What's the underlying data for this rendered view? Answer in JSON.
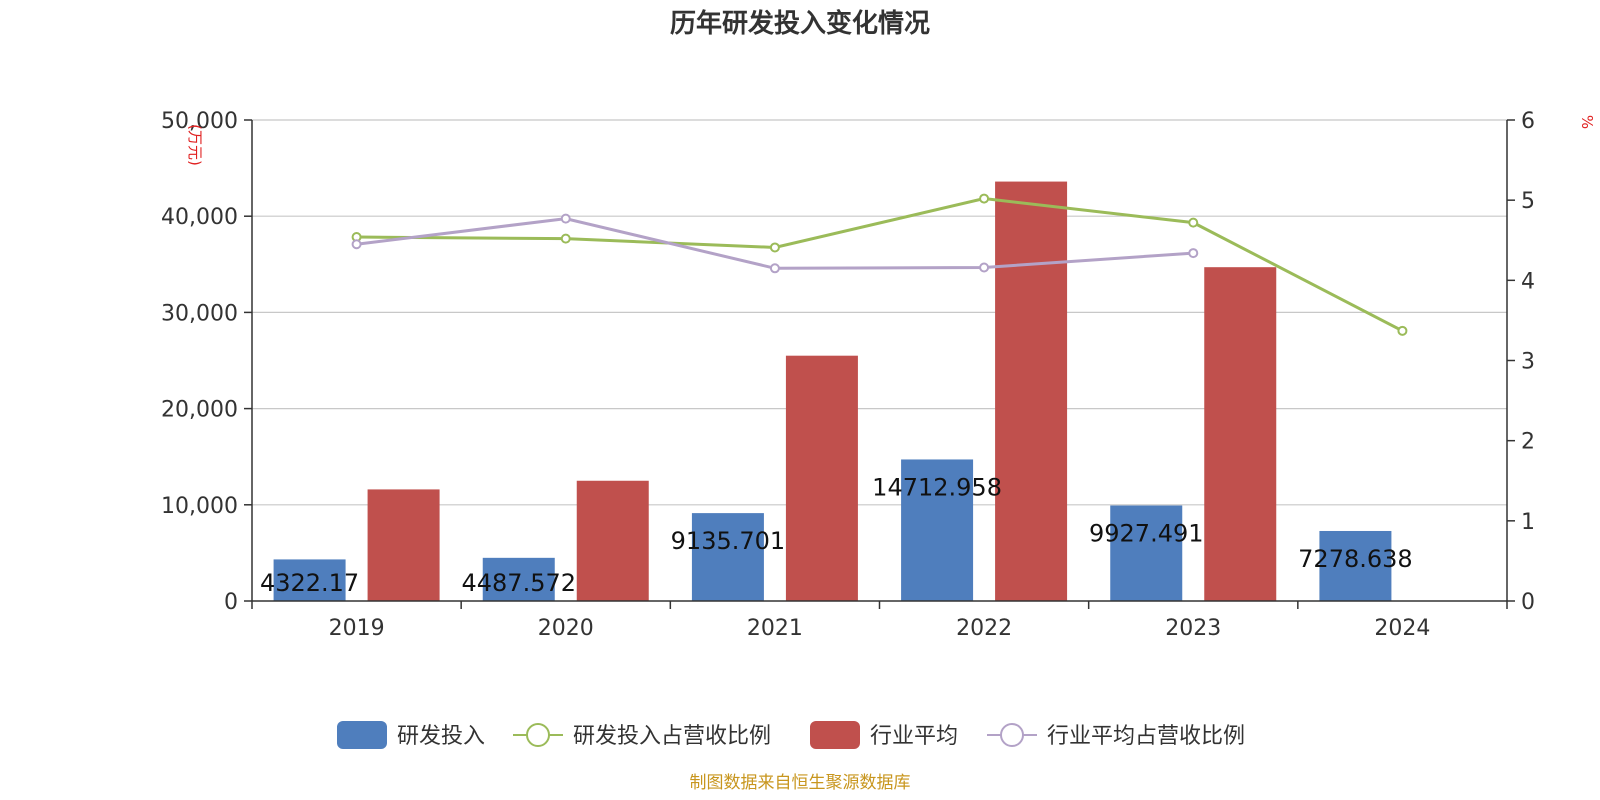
{
  "chart_data": {
    "type": "bar",
    "title": "历年研发投入变化情况",
    "categories": [
      "2019",
      "2020",
      "2021",
      "2022",
      "2023",
      "2024"
    ],
    "left_axis": {
      "unit": "(万元)",
      "ylim": [
        0,
        50000
      ],
      "ticks": [
        "0",
        "10,000",
        "20,000",
        "30,000",
        "40,000",
        "50,000"
      ]
    },
    "right_axis": {
      "unit": "%",
      "ylim": [
        0,
        6
      ],
      "ticks": [
        "0",
        "1",
        "2",
        "3",
        "4",
        "5",
        "6"
      ]
    },
    "grid": true,
    "legend_position": "bottom",
    "series": [
      {
        "name": "研发投入",
        "type": "bar",
        "axis": "left",
        "color": "#4f7ebd",
        "values": [
          4322.17,
          4487.572,
          9135.701,
          14712.958,
          9927.491,
          7278.638
        ],
        "labels": [
          "4322.17",
          "4487.572",
          "9135.701",
          "14712.958",
          "9927.491",
          "7278.638"
        ]
      },
      {
        "name": "研发投入占营收比例",
        "type": "line",
        "axis": "right",
        "color": "#9bbb59",
        "values": [
          4.54,
          4.52,
          4.41,
          5.02,
          4.72,
          3.37
        ]
      },
      {
        "name": "行业平均",
        "type": "bar",
        "axis": "left",
        "color": "#c0504d",
        "values": [
          11600,
          12500,
          25500,
          43600,
          34700,
          null
        ]
      },
      {
        "name": "行业平均占营收比例",
        "type": "line",
        "axis": "right",
        "color": "#b3a2c7",
        "values": [
          4.45,
          4.77,
          4.15,
          4.16,
          4.34,
          null
        ]
      }
    ],
    "source": "制图数据来自恒生聚源数据库"
  }
}
